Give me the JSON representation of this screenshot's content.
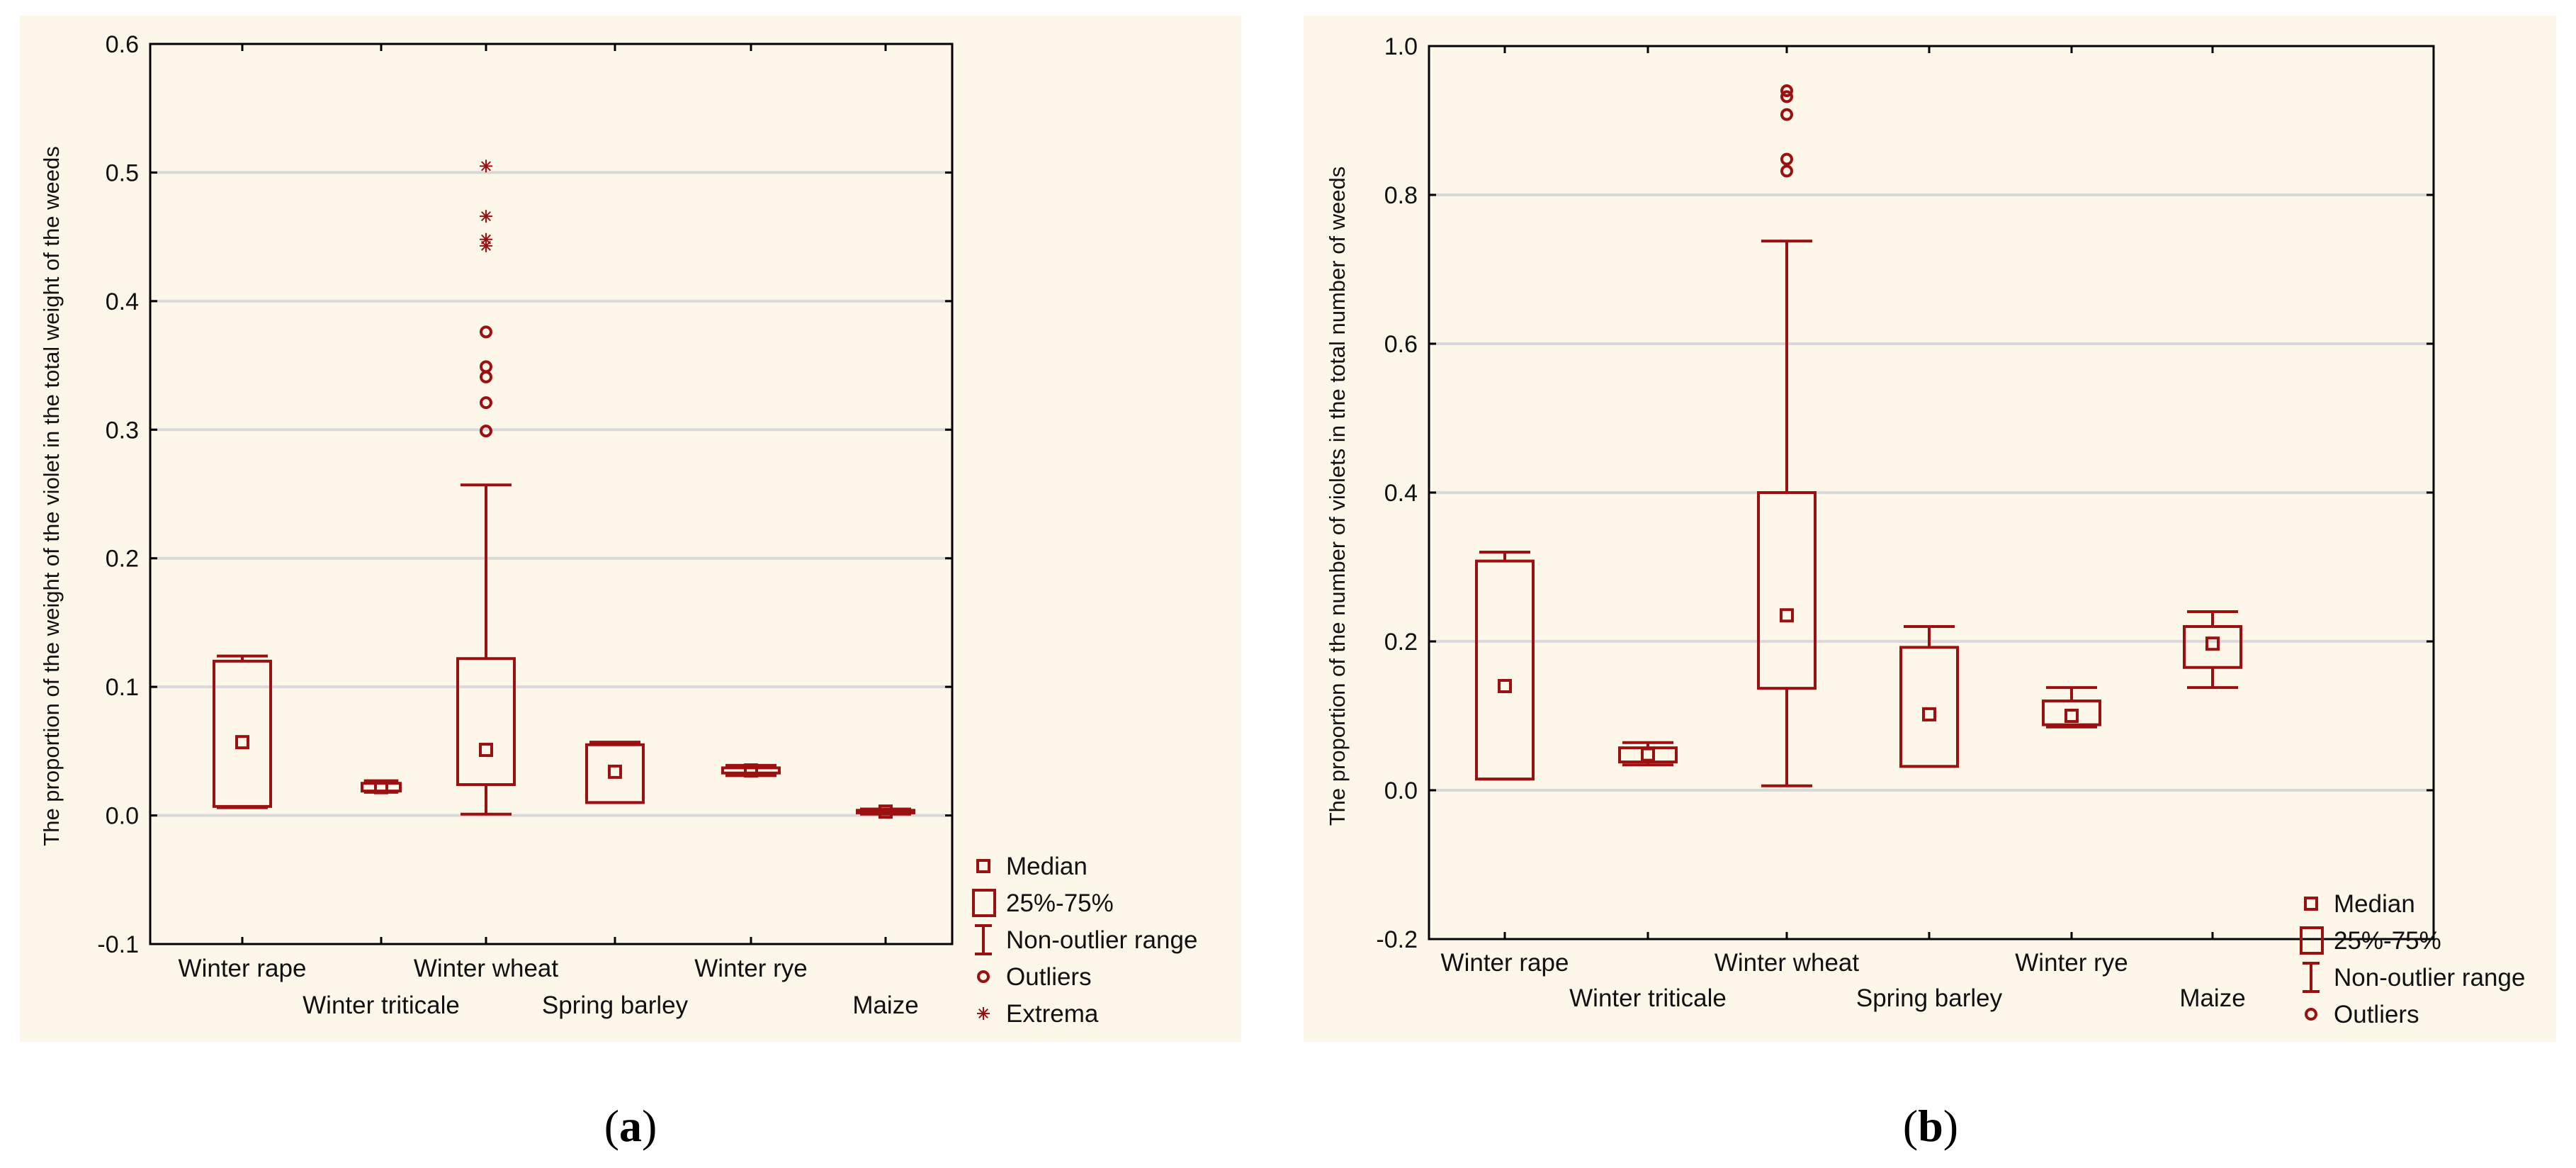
{
  "colors": {
    "panel_bg": "#fcf7e9",
    "series": "#9b1111",
    "grid": "#d9d9d9",
    "axis": "#000000"
  },
  "chart_data": [
    {
      "panel": "a",
      "type": "box",
      "ylabel": "The proportion of the weight of the violet in the total weight of the weeds",
      "ylim": [
        -0.1,
        0.6
      ],
      "yticks": [
        "-0.1",
        "0.0",
        "0.1",
        "0.2",
        "0.3",
        "0.4",
        "0.5",
        "0.6"
      ],
      "grid": true,
      "categories": [
        "Winter rape",
        "Winter triticale",
        "Winter wheat",
        "Spring barley",
        "Winter rye",
        "Maize"
      ],
      "boxes": [
        {
          "median": 0.057,
          "q1": 0.007,
          "q3": 0.12,
          "whisker_low": 0.006,
          "whisker_high": 0.124,
          "outliers": [],
          "extremes": []
        },
        {
          "median": 0.022,
          "q1": 0.019,
          "q3": 0.025,
          "whisker_low": 0.018,
          "whisker_high": 0.027,
          "outliers": [],
          "extremes": []
        },
        {
          "median": 0.051,
          "q1": 0.024,
          "q3": 0.122,
          "whisker_low": 0.001,
          "whisker_high": 0.257,
          "outliers": [
            0.299,
            0.321,
            0.341,
            0.349,
            0.376
          ],
          "extremes": [
            0.443,
            0.448,
            0.466,
            0.505
          ]
        },
        {
          "median": 0.034,
          "q1": 0.01,
          "q3": 0.055,
          "whisker_low": 0.01,
          "whisker_high": 0.057,
          "outliers": [],
          "extremes": []
        },
        {
          "median": 0.035,
          "q1": 0.033,
          "q3": 0.037,
          "whisker_low": 0.031,
          "whisker_high": 0.039,
          "outliers": [],
          "extremes": []
        },
        {
          "median": 0.003,
          "q1": 0.002,
          "q3": 0.004,
          "whisker_low": 0.001,
          "whisker_high": 0.005,
          "outliers": [],
          "extremes": []
        }
      ],
      "legend": [
        "Median",
        "25%-75%",
        "Non-outlier range",
        "Outliers",
        "Extrema"
      ],
      "legend_placement": "bottom-right"
    },
    {
      "panel": "b",
      "type": "box",
      "ylabel": "The proportion of the number of violets in the total number of weeds",
      "ylim": [
        -0.2,
        1.0
      ],
      "yticks": [
        "-0.2",
        "0.0",
        "0.2",
        "0.4",
        "0.6",
        "0.8",
        "1.0"
      ],
      "grid": true,
      "categories": [
        "Winter rape",
        "Winter triticale",
        "Winter wheat",
        "Spring barley",
        "Winter rye",
        "Maize"
      ],
      "boxes": [
        {
          "median": 0.14,
          "q1": 0.015,
          "q3": 0.308,
          "whisker_low": 0.015,
          "whisker_high": 0.32,
          "outliers": [],
          "extremes": []
        },
        {
          "median": 0.048,
          "q1": 0.038,
          "q3": 0.057,
          "whisker_low": 0.034,
          "whisker_high": 0.064,
          "outliers": [],
          "extremes": []
        },
        {
          "median": 0.235,
          "q1": 0.137,
          "q3": 0.4,
          "whisker_low": 0.006,
          "whisker_high": 0.738,
          "outliers": [
            0.832,
            0.848,
            0.908,
            0.932,
            0.94
          ],
          "extremes": []
        },
        {
          "median": 0.102,
          "q1": 0.032,
          "q3": 0.192,
          "whisker_low": 0.032,
          "whisker_high": 0.22,
          "outliers": [],
          "extremes": []
        },
        {
          "median": 0.1,
          "q1": 0.088,
          "q3": 0.12,
          "whisker_low": 0.085,
          "whisker_high": 0.138,
          "outliers": [],
          "extremes": []
        },
        {
          "median": 0.197,
          "q1": 0.165,
          "q3": 0.22,
          "whisker_low": 0.138,
          "whisker_high": 0.24,
          "outliers": [],
          "extremes": []
        }
      ],
      "legend": [
        "Median",
        "25%-75%",
        "Non-outlier range",
        "Outliers"
      ],
      "legend_placement": "bottom-right"
    }
  ],
  "captions": [
    {
      "open": "(",
      "letter": "a",
      "close": ")"
    },
    {
      "open": "(",
      "letter": "b",
      "close": ")"
    }
  ]
}
